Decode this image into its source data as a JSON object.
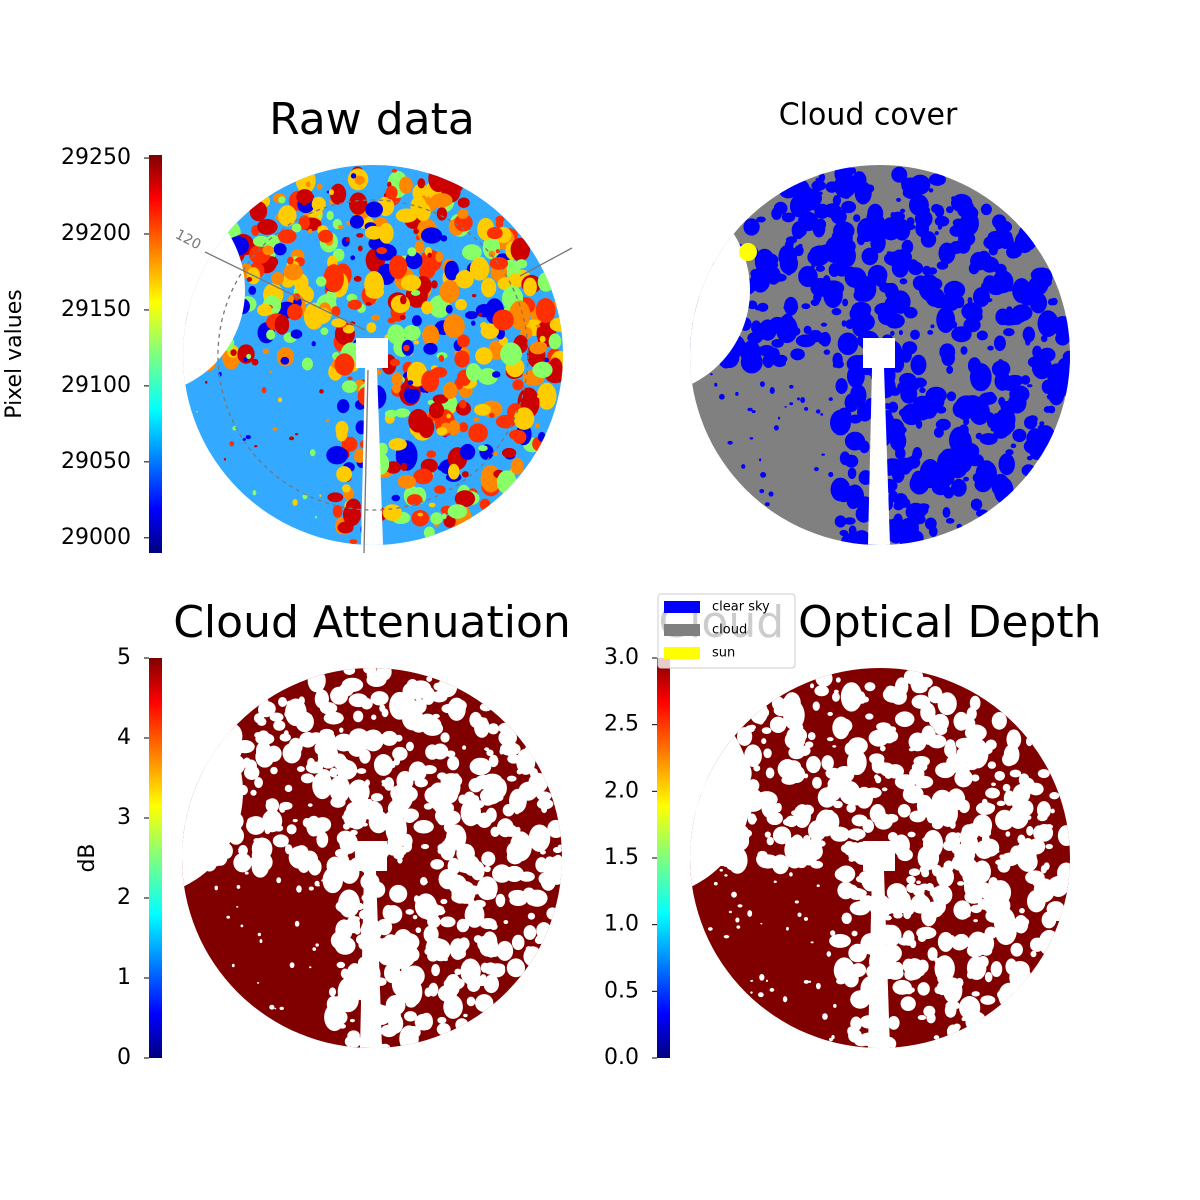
{
  "chart_data": [
    {
      "type": "image",
      "title": "Raw data",
      "annotations": [
        "120"
      ],
      "colorbar": {
        "label": "Pixel values",
        "colormap": "jet",
        "ylim": [
          28990,
          29252
        ],
        "yticks": [
          29000,
          29050,
          29100,
          29150,
          29200,
          29250
        ]
      }
    },
    {
      "type": "image",
      "title": "Cloud cover",
      "legend": [
        {
          "name": "clear sky",
          "color": "#0000ff"
        },
        {
          "name": "cloud",
          "color": "#808080"
        },
        {
          "name": "sun",
          "color": "#ffff00"
        }
      ]
    },
    {
      "type": "image",
      "title": "Cloud Attenuation",
      "colorbar": {
        "label": "dB",
        "colormap": "jet",
        "ylim": [
          0,
          5
        ],
        "yticks": [
          0,
          1,
          2,
          3,
          4,
          5
        ]
      }
    },
    {
      "type": "image",
      "title": "Cloud Optical Depth",
      "colorbar": {
        "colormap": "jet",
        "ylim": [
          0,
          3
        ],
        "yticks": [
          {
            "value": 0,
            "label": "0.0"
          },
          {
            "value": 0.5,
            "label": "0.5"
          },
          {
            "value": 1,
            "label": "1.0"
          },
          {
            "value": 1.5,
            "label": "1.5"
          },
          {
            "value": 2,
            "label": "2.0"
          },
          {
            "value": 2.5,
            "label": "2.5"
          },
          {
            "value": 3,
            "label": "3.0"
          }
        ]
      }
    }
  ]
}
